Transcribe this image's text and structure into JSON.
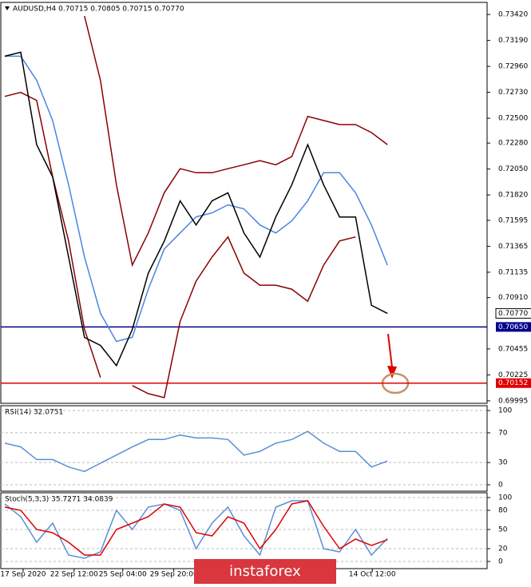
{
  "chart_data": [
    {
      "type": "line",
      "title": "AUDUSD,H4 0.70715 0.70805 0.70715 0.70770",
      "xlim": [
        -0.25,
        30.25
      ],
      "xticks": [
        {
          "value": 1.15,
          "label": "17 Sep 2020"
        },
        {
          "value": 4.35,
          "label": "22 Sep 12:00"
        },
        {
          "value": 7.4,
          "label": "25 Sep 04:00"
        },
        {
          "value": 10.6,
          "label": "29 Sep 20:00"
        },
        {
          "value": 23.05,
          "label": "14 Oct 12:00"
        }
      ],
      "ylim": [
        0.69973,
        0.73527
      ],
      "yticks": [
        {
          "value": 0.6999499999999999,
          "label": "0.69995"
        },
        {
          "value": 0.70225,
          "label": "0.70225"
        },
        {
          "value": 0.70455,
          "label": "0.70455"
        },
        {
          "value": 0.7091,
          "label": "0.70910"
        },
        {
          "value": 0.71135,
          "label": "0.71135"
        },
        {
          "value": 0.71365,
          "label": "0.71365"
        },
        {
          "value": 0.71595,
          "label": "0.71595"
        },
        {
          "value": 0.7182,
          "label": "0.71820"
        },
        {
          "value": 0.7205,
          "label": "0.72050"
        },
        {
          "value": 0.7228,
          "label": "0.72280"
        },
        {
          "value": 0.725,
          "label": "0.72500"
        },
        {
          "value": 0.7273,
          "label": "0.72730"
        },
        {
          "value": 0.7296,
          "label": "0.72960"
        },
        {
          "value": 0.7319,
          "label": "0.73190"
        },
        {
          "value": 0.7342,
          "label": "0.73420"
        }
      ],
      "grid": false,
      "current_price": {
        "value": 0.7077,
        "label": "0.70770"
      },
      "hlines": [
        {
          "value": 0.7065,
          "label": "0.70650",
          "color": "#00008b"
        },
        {
          "value": 0.70152,
          "label": "0.70152",
          "color": "#e00000"
        }
      ],
      "series": [
        {
          "color": "#8b0000",
          "values": [
            null,
            null,
            null,
            null,
            null,
            0.73406,
            0.72836,
            0.7191,
            0.71198,
            0.71483,
            0.71839,
            0.72053,
            0.72017,
            0.72017,
            0.72053,
            0.72088,
            0.72124,
            0.72088,
            0.7216,
            0.72516,
            0.7248,
            0.72444,
            0.72444,
            0.72373,
            0.72266
          ]
        },
        {
          "color": "#8b0000",
          "values": [
            0.72694,
            0.72729,
            0.72658,
            0.71982,
            0.71412,
            0.70629,
            0.70202,
            null,
            0.7013,
            0.70059,
            0.70024,
            0.707,
            0.71056,
            0.7127,
            0.71448,
            0.71127,
            0.7102,
            0.7102,
            0.70985,
            0.70878,
            0.71198,
            0.71412,
            0.71448,
            null,
            null
          ]
        },
        {
          "color": "#4a86e0",
          "values": [
            0.7305,
            0.7305,
            0.72836,
            0.7248,
            0.7191,
            0.7127,
            0.70771,
            0.70522,
            0.70558,
            0.70985,
            0.71341,
            0.71483,
            0.71626,
            0.71661,
            0.71732,
            0.71697,
            0.71554,
            0.71483,
            0.7159,
            0.71768,
            0.72017,
            0.72017,
            0.71839,
            0.71554,
            0.71198
          ]
        },
        {
          "color": "#000000",
          "values": [
            0.7305,
            0.73085,
            0.72266,
            0.71981,
            0.71269,
            0.70557,
            0.70486,
            0.70307,
            0.70628,
            0.71127,
            0.71411,
            0.71768,
            0.71554,
            0.71768,
            0.71839,
            0.71483,
            0.71269,
            0.71625,
            0.7191,
            0.72266,
            0.7191,
            0.71625,
            0.71625,
            0.70842,
            0.7077
          ]
        }
      ]
    },
    {
      "type": "line",
      "title": "RSI(14) 32.0751",
      "ylim": [
        -8.6,
        106.5
      ],
      "yticks": [
        0,
        30,
        70,
        100
      ],
      "grid": true,
      "series": [
        {
          "color": "#5b8fd6",
          "values": [
            56,
            51,
            34,
            34,
            24,
            18,
            29,
            40,
            51,
            61,
            61,
            67,
            63,
            63,
            61,
            40,
            45,
            56,
            61,
            72,
            56,
            45,
            45,
            24,
            32
          ]
        }
      ]
    },
    {
      "type": "line",
      "title": "Stoch(5,3,3) 35.7271 34.0839",
      "ylim": [
        -11.25,
        107.5
      ],
      "yticks": [
        0,
        20,
        50,
        80,
        100
      ],
      "grid": true,
      "series": [
        {
          "color": "#5b8fd6",
          "values": [
            90,
            70,
            30,
            60,
            10,
            5,
            15,
            80,
            50,
            85,
            90,
            80,
            20,
            60,
            85,
            40,
            10,
            85,
            95,
            95,
            20,
            15,
            50,
            10,
            36
          ]
        },
        {
          "color": "#e00000",
          "values": [
            85,
            80,
            50,
            45,
            30,
            10,
            10,
            50,
            60,
            70,
            90,
            85,
            45,
            40,
            70,
            60,
            20,
            50,
            90,
            95,
            55,
            20,
            35,
            25,
            34
          ]
        }
      ]
    }
  ],
  "watermark": "instaforex"
}
